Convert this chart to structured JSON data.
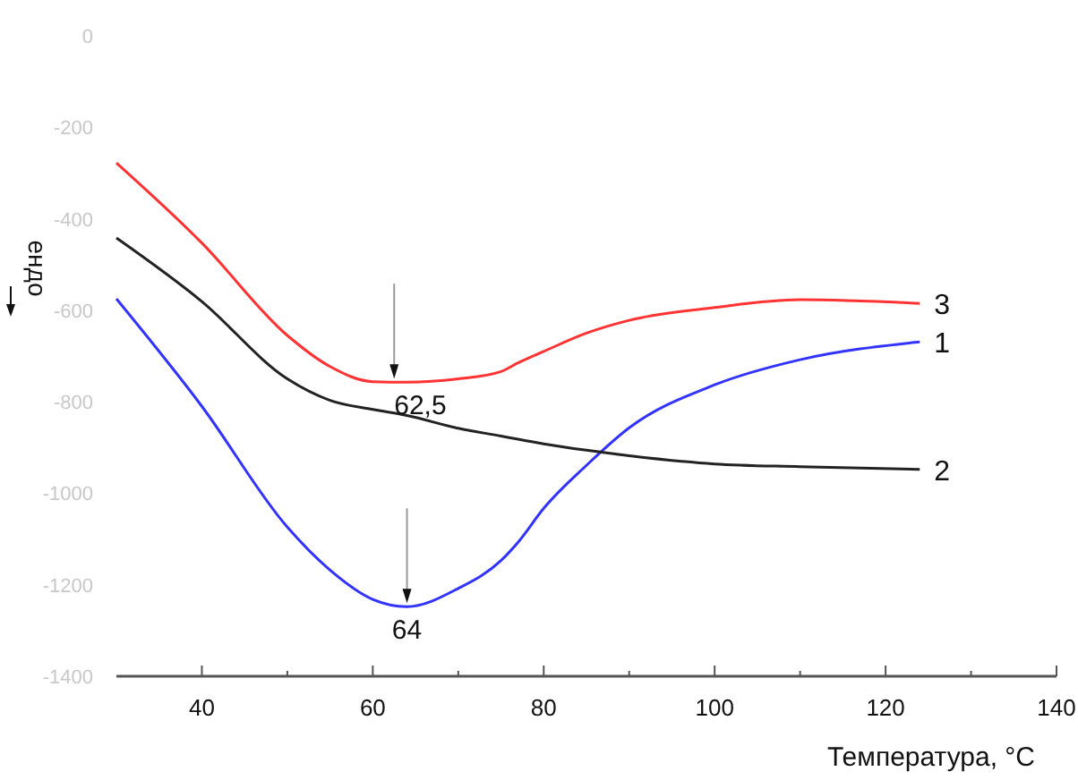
{
  "chart_data": {
    "type": "line",
    "xlabel": "Температура, °C",
    "ylabel": "ендо",
    "xlim": [
      30,
      140
    ],
    "ylim": [
      -1400,
      0
    ],
    "xticks": [
      40,
      {
        "value": 50,
        "label": null
      },
      60,
      {
        "value": 70,
        "label": null
      },
      80,
      {
        "value": 90,
        "label": null
      },
      100,
      {
        "value": 110,
        "label": null
      },
      120,
      {
        "value": 130,
        "label": null
      },
      140
    ],
    "yticks": [
      0,
      -200,
      -400,
      -600,
      -800,
      -1000,
      -1200,
      -1400
    ],
    "x": [
      30,
      40,
      50,
      55,
      60,
      64,
      70,
      75,
      77,
      80,
      85,
      90,
      100,
      110,
      124
    ],
    "series": [
      {
        "name": "1",
        "color": "#3333ff",
        "values": [
          -575,
          -810,
          -1074,
          -1168,
          -1232,
          -1248,
          -1208,
          -1147,
          -1107,
          -1033,
          -939,
          -857,
          -763,
          -708,
          -669
        ]
      },
      {
        "name": "2",
        "color": "#222222",
        "values": [
          -442,
          -581,
          -750,
          -797,
          -817,
          -830,
          -858,
          -875,
          -882,
          -892,
          -906,
          -918,
          -936,
          -942,
          -948
        ]
      },
      {
        "name": "3",
        "color": "#ff3333",
        "values": [
          -278,
          -453,
          -655,
          -723,
          -756,
          -757,
          -750,
          -734,
          -715,
          -690,
          -650,
          -622,
          -594,
          -577,
          -585
        ]
      }
    ],
    "annotations": [
      {
        "text": "62,5",
        "x": 62.5,
        "y": -757
      },
      {
        "text": "64",
        "x": 64,
        "y": -1248
      }
    ],
    "grid": false,
    "marker": "none",
    "line_style": "solid"
  }
}
